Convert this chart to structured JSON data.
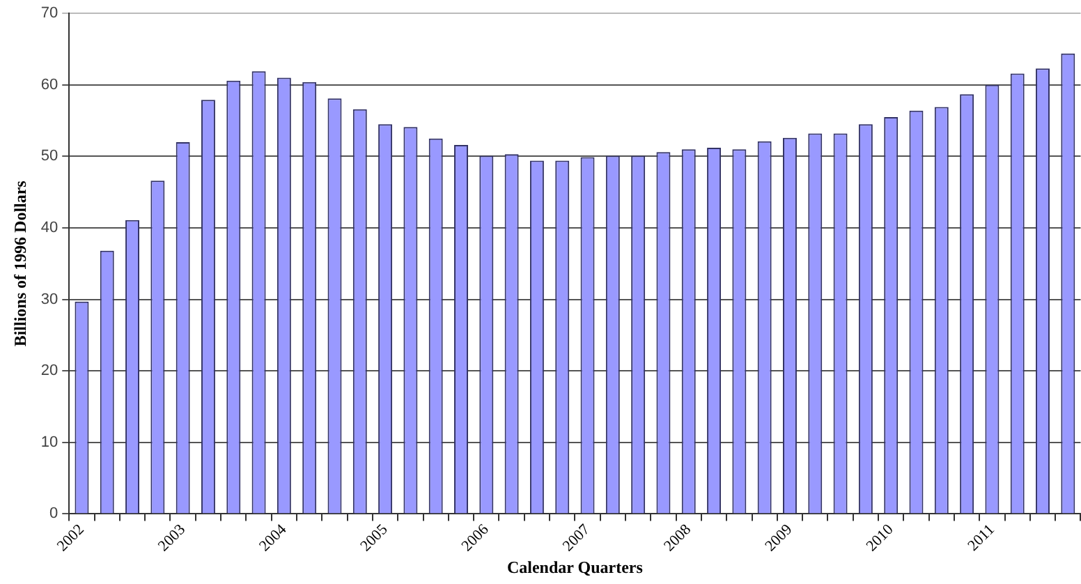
{
  "chart_data": {
    "type": "bar",
    "xlabel": "Calendar Quarters",
    "ylabel": "Billions of 1996 Dollars",
    "categories": [
      "2002",
      null,
      null,
      null,
      "2003",
      null,
      null,
      null,
      "2004",
      null,
      null,
      null,
      "2005",
      null,
      null,
      null,
      "2006",
      null,
      null,
      null,
      "2007",
      null,
      null,
      null,
      "2008",
      null,
      null,
      null,
      "2009",
      null,
      null,
      null,
      "2010",
      null,
      null,
      null,
      "2011",
      null,
      null,
      null
    ],
    "values": [
      29.7,
      36.8,
      41.1,
      46.6,
      52.0,
      57.9,
      60.6,
      61.9,
      61.0,
      60.4,
      58.1,
      56.6,
      54.5,
      54.1,
      52.5,
      51.6,
      50.1,
      50.3,
      49.4,
      49.4,
      49.9,
      50.1,
      50.1,
      50.6,
      51.0,
      51.2,
      51.0,
      52.1,
      52.6,
      53.2,
      53.2,
      54.5,
      55.5,
      56.4,
      56.9,
      58.7,
      60.0,
      61.6,
      62.3,
      64.4
    ],
    "color": "#9999ff",
    "ylim": [
      0,
      70
    ],
    "yticks": [
      0,
      10,
      20,
      30,
      40,
      50,
      60,
      70
    ],
    "grid": "y",
    "legend": false
  }
}
